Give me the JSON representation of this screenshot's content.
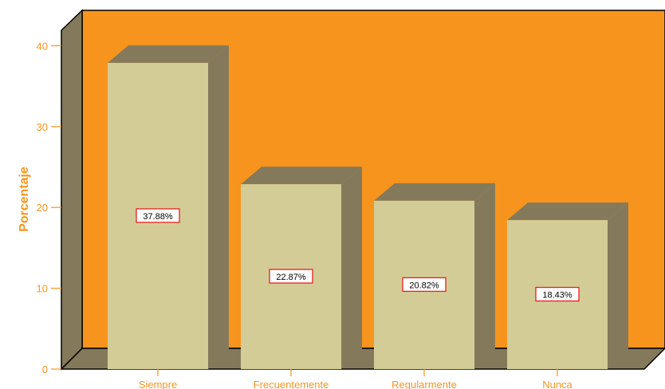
{
  "chart_data": {
    "type": "bar",
    "title": "",
    "xlabel": "",
    "ylabel": "Porcentaje",
    "categories": [
      "Siempre",
      "Frecuentemente",
      "Regularmente",
      "Nunca"
    ],
    "values": [
      37.88,
      22.87,
      20.82,
      18.43
    ],
    "data_labels": [
      "37.88%",
      "22.87%",
      "20.82%",
      "18.43%"
    ],
    "ylim": [
      0,
      40
    ],
    "yticks": [
      0,
      10,
      20,
      30,
      40
    ],
    "ytick_labels": [
      "0",
      "10",
      "20",
      "30",
      "40"
    ],
    "grid": false,
    "style": "3d",
    "colors": {
      "wall": "#f7941d",
      "side_wall": "#847a5b",
      "bar_front": "#d3cc96",
      "bar_side": "#847a5b",
      "bar_top": "#847a5b",
      "label_border": "#e8211e",
      "axis_text": "#f7941d"
    }
  }
}
